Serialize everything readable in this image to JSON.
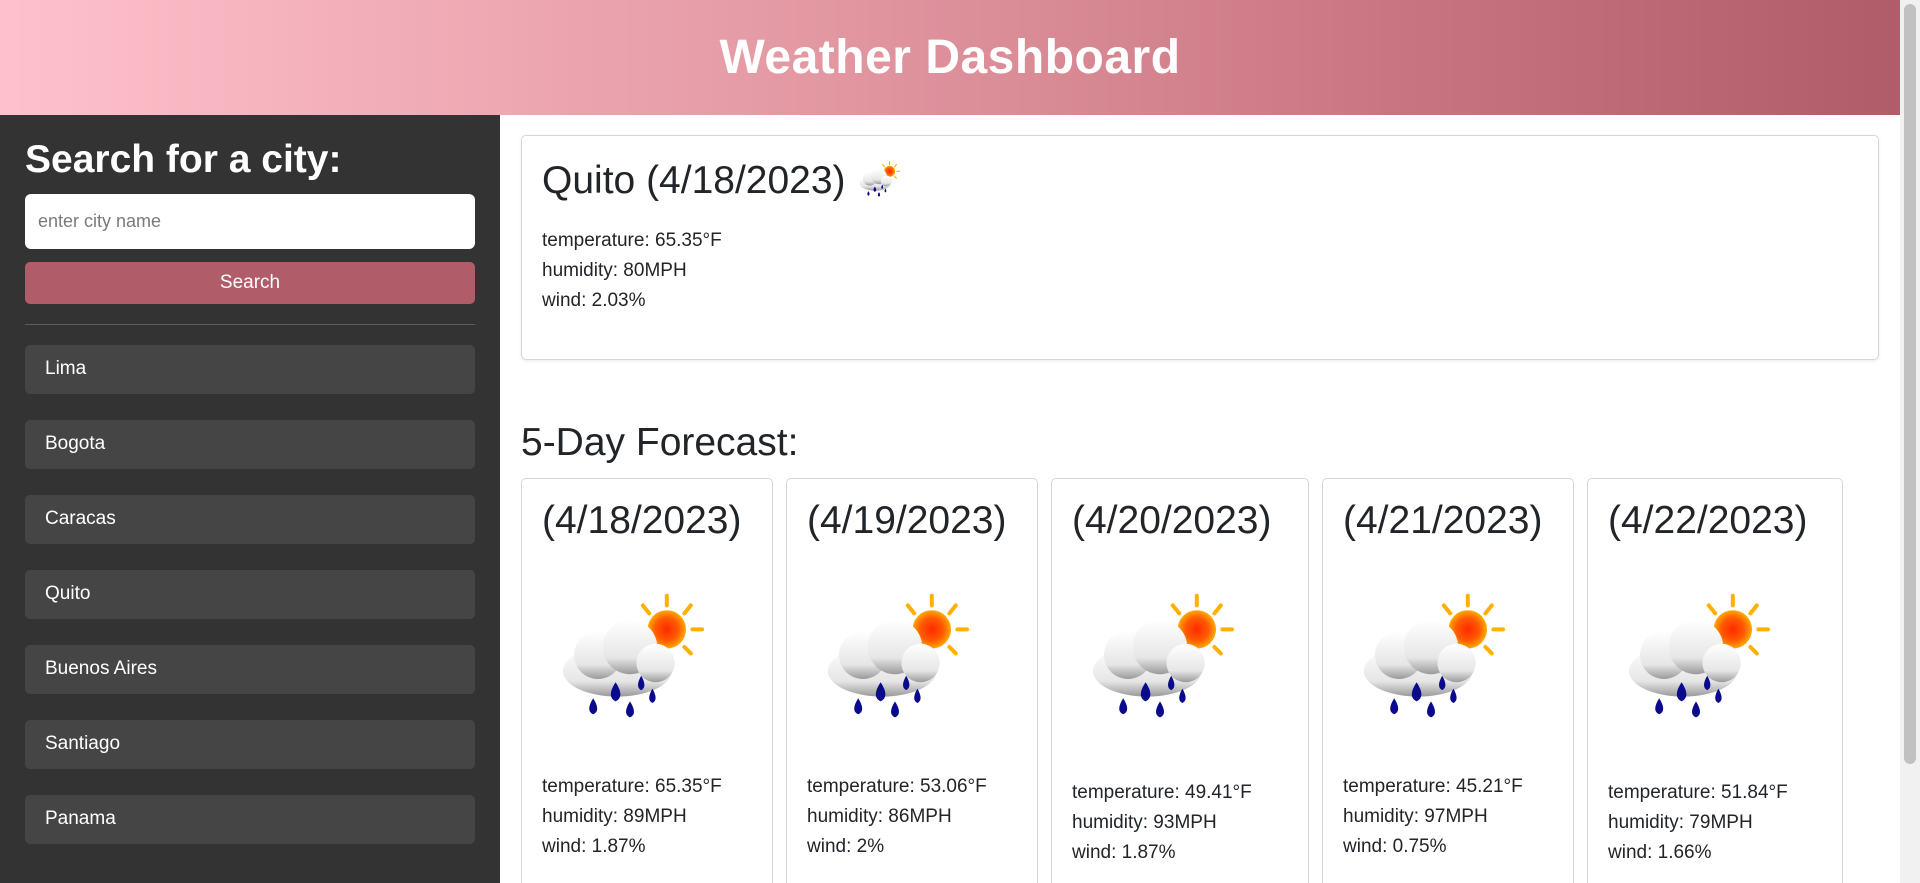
{
  "header": {
    "title": "Weather Dashboard"
  },
  "sidebar": {
    "heading": "Search for a city:",
    "search_placeholder": "enter city name",
    "search_label": "Search",
    "cities": [
      "Lima",
      "Bogota",
      "Caracas",
      "Quito",
      "Buenos Aires",
      "Santiago",
      "Panama"
    ]
  },
  "current": {
    "city": "Quito",
    "date": "(4/18/2023)",
    "icon": "rain-sun-icon",
    "temperature": "temperature: 65.35°F",
    "humidity": "humidity: 80MPH",
    "wind": "wind: 2.03%"
  },
  "forecast": {
    "heading": "5-Day Forecast:",
    "days": [
      {
        "date": "(4/18/2023)",
        "icon": "rain-sun-icon",
        "temperature": "temperature: 65.35°F",
        "humidity": "humidity: 89MPH",
        "wind": "wind: 1.87%"
      },
      {
        "date": "(4/19/2023)",
        "icon": "rain-sun-icon",
        "temperature": "temperature: 53.06°F",
        "humidity": "humidity: 86MPH",
        "wind": "wind: 2%"
      },
      {
        "date": "(4/20/2023)",
        "icon": "rain-sun-icon",
        "temperature": "temperature: 49.41°F",
        "humidity": "humidity: 93MPH",
        "wind": "wind: 1.87%"
      },
      {
        "date": "(4/21/2023)",
        "icon": "rain-sun-icon",
        "temperature": "temperature: 45.21°F",
        "humidity": "humidity: 97MPH",
        "wind": "wind: 0.75%"
      },
      {
        "date": "(4/22/2023)",
        "icon": "rain-sun-icon",
        "temperature": "temperature: 51.84°F",
        "humidity": "humidity: 79MPH",
        "wind": "wind: 1.66%"
      }
    ]
  },
  "colors": {
    "accent": "#b05c69",
    "sidebar_bg": "#333333",
    "city_item_bg": "#454545"
  }
}
